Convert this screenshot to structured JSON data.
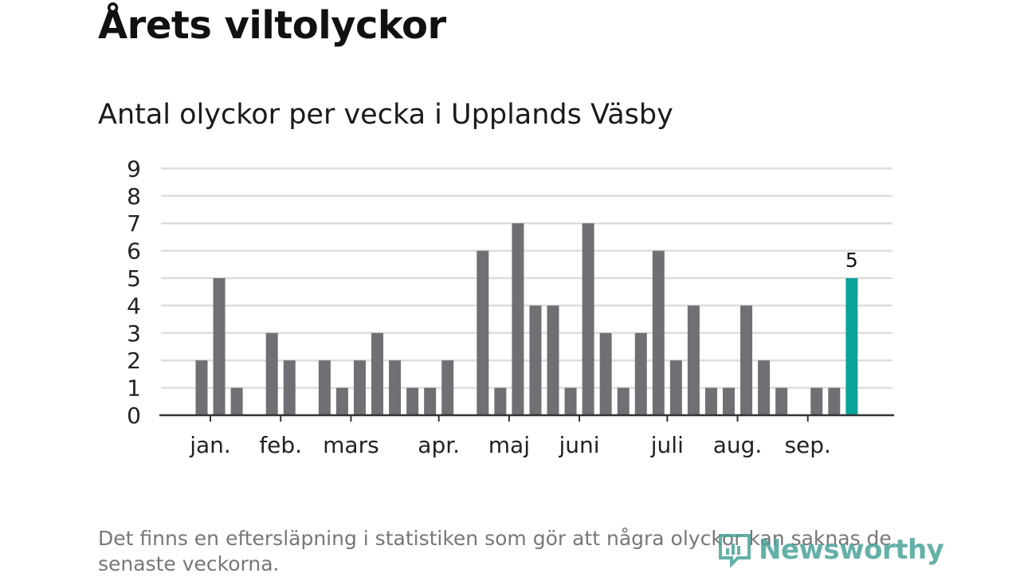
{
  "title": "Årets viltolyckor",
  "subtitle": "Antal olyckor per vecka i Upplands Väsby",
  "footnote": "Det finns en eftersläpning i statistiken som gör att några olyckor kan saknas de senaste veckorna.",
  "logo": {
    "text": "Newsworthy",
    "icon": "newsworthy-bar-icon"
  },
  "colors": {
    "bar": "#706f74",
    "highlight": "#0aa39a",
    "grid": "#dddddd",
    "axis": "#333333",
    "text": "#222222"
  },
  "chart_data": {
    "type": "bar",
    "title": "Antal olyckor per vecka i Upplands Väsby",
    "xlabel": "",
    "ylabel": "",
    "ylim": [
      0,
      9
    ],
    "yticks": [
      "0",
      "1",
      "2",
      "3",
      "4",
      "5",
      "6",
      "7",
      "8",
      "9"
    ],
    "values": [
      2,
      5,
      1,
      0,
      3,
      2,
      0,
      2,
      1,
      2,
      3,
      2,
      1,
      1,
      2,
      0,
      6,
      1,
      7,
      4,
      4,
      1,
      7,
      3,
      1,
      3,
      6,
      2,
      4,
      1,
      1,
      4,
      2,
      1,
      0,
      1,
      1,
      5
    ],
    "highlight_index": 37,
    "highlight_label": "5",
    "month_labels": [
      {
        "label": "jan.",
        "week": 0.5
      },
      {
        "label": "feb.",
        "week": 4.5
      },
      {
        "label": "mars",
        "week": 8.5
      },
      {
        "label": "apr.",
        "week": 13.5
      },
      {
        "label": "maj",
        "week": 17.5
      },
      {
        "label": "juni",
        "week": 21.5
      },
      {
        "label": "juli",
        "week": 26.5
      },
      {
        "label": "aug.",
        "week": 30.5
      },
      {
        "label": "sep.",
        "week": 34.5
      }
    ],
    "grid": true,
    "legend": "none"
  }
}
